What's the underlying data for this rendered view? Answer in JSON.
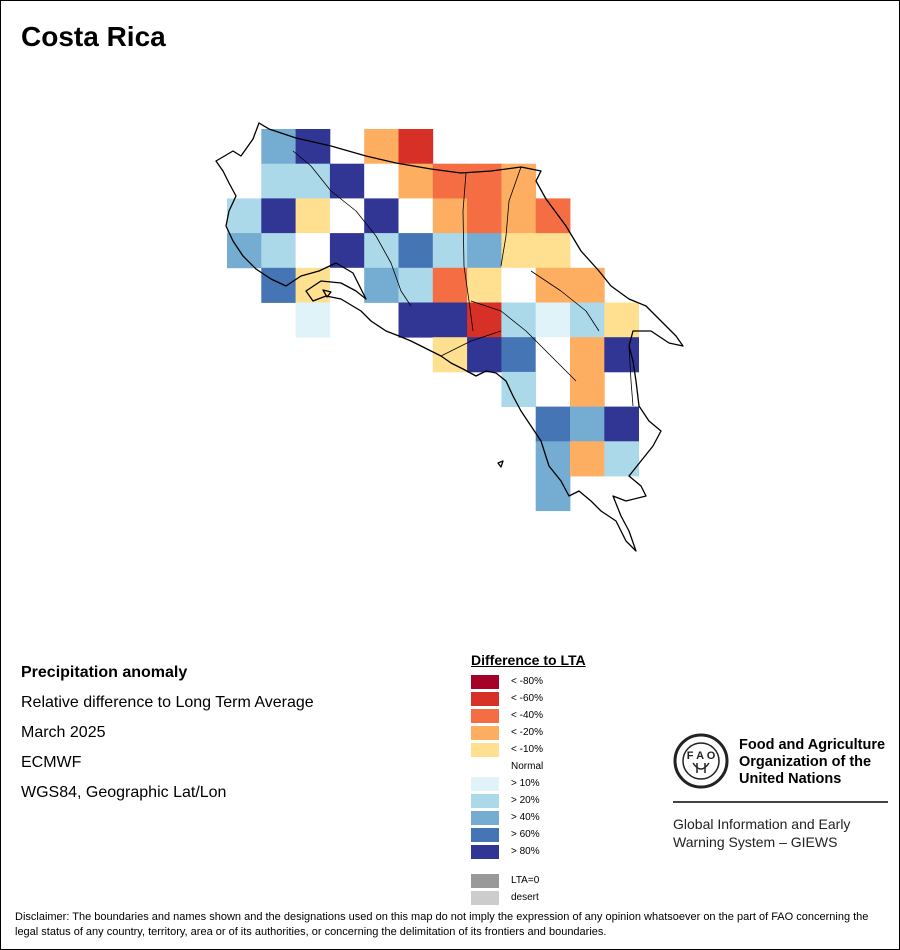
{
  "map": {
    "title": "Costa Rica",
    "info": {
      "variable": "Precipitation anomaly",
      "description": "Relative difference to Long Term Average",
      "period": "March 2025",
      "source": "ECMWF",
      "projection": "WGS84, Geographic Lat/Lon"
    },
    "legend": {
      "title": "Difference to LTA",
      "classes": [
        {
          "label": "< -80%",
          "color": "#a50026"
        },
        {
          "label": "< -60%",
          "color": "#d73027"
        },
        {
          "label": "< -40%",
          "color": "#f46d43"
        },
        {
          "label": "< -20%",
          "color": "#fdae61"
        },
        {
          "label": "< -10%",
          "color": "#fee090"
        },
        {
          "label": "Normal",
          "color": "#ffffff"
        },
        {
          "label": "> 10%",
          "color": "#e0f3f8"
        },
        {
          "label": "> 20%",
          "color": "#abd9e9"
        },
        {
          "label": "> 40%",
          "color": "#74add1"
        },
        {
          "label": "> 60%",
          "color": "#4575b4"
        },
        {
          "label": "> 80%",
          "color": "#313695"
        }
      ],
      "extra": [
        {
          "label": "LTA=0",
          "color": "#999999"
        },
        {
          "label": "desert",
          "color": "#cccccc"
        }
      ]
    },
    "grid_cells": [
      {
        "row": 0,
        "col": 1,
        "cls": "> 40%"
      },
      {
        "row": 0,
        "col": 2,
        "cls": "> 80%"
      },
      {
        "row": 0,
        "col": 4,
        "cls": "< -20%"
      },
      {
        "row": 0,
        "col": 5,
        "cls": "< -60%"
      },
      {
        "row": 1,
        "col": 1,
        "cls": "> 20%"
      },
      {
        "row": 1,
        "col": 2,
        "cls": "> 20%"
      },
      {
        "row": 1,
        "col": 3,
        "cls": "> 80%"
      },
      {
        "row": 1,
        "col": 4,
        "cls": "Normal"
      },
      {
        "row": 1,
        "col": 5,
        "cls": "< -20%"
      },
      {
        "row": 1,
        "col": 6,
        "cls": "< -40%"
      },
      {
        "row": 1,
        "col": 7,
        "cls": "< -40%"
      },
      {
        "row": 1,
        "col": 8,
        "cls": "< -20%"
      },
      {
        "row": 2,
        "col": 0,
        "cls": "> 20%"
      },
      {
        "row": 2,
        "col": 1,
        "cls": "> 80%"
      },
      {
        "row": 2,
        "col": 2,
        "cls": "< -10%"
      },
      {
        "row": 2,
        "col": 3,
        "cls": "Normal"
      },
      {
        "row": 2,
        "col": 4,
        "cls": "> 80%"
      },
      {
        "row": 2,
        "col": 5,
        "cls": "Normal"
      },
      {
        "row": 2,
        "col": 6,
        "cls": "< -20%"
      },
      {
        "row": 2,
        "col": 7,
        "cls": "< -40%"
      },
      {
        "row": 2,
        "col": 8,
        "cls": "< -20%"
      },
      {
        "row": 2,
        "col": 9,
        "cls": "< -40%"
      },
      {
        "row": 3,
        "col": 0,
        "cls": "> 40%"
      },
      {
        "row": 3,
        "col": 1,
        "cls": "> 20%"
      },
      {
        "row": 3,
        "col": 2,
        "cls": "Normal"
      },
      {
        "row": 3,
        "col": 3,
        "cls": "> 80%"
      },
      {
        "row": 3,
        "col": 4,
        "cls": "> 20%"
      },
      {
        "row": 3,
        "col": 5,
        "cls": "> 60%"
      },
      {
        "row": 3,
        "col": 6,
        "cls": "> 20%"
      },
      {
        "row": 3,
        "col": 7,
        "cls": "> 40%"
      },
      {
        "row": 3,
        "col": 8,
        "cls": "< -10%"
      },
      {
        "row": 3,
        "col": 9,
        "cls": "< -10%"
      },
      {
        "row": 4,
        "col": 1,
        "cls": "> 60%"
      },
      {
        "row": 4,
        "col": 2,
        "cls": "< -10%"
      },
      {
        "row": 4,
        "col": 3,
        "cls": "Normal"
      },
      {
        "row": 4,
        "col": 4,
        "cls": "> 40%"
      },
      {
        "row": 4,
        "col": 5,
        "cls": "> 20%"
      },
      {
        "row": 4,
        "col": 6,
        "cls": "< -40%"
      },
      {
        "row": 4,
        "col": 7,
        "cls": "< -10%"
      },
      {
        "row": 4,
        "col": 8,
        "cls": "Normal"
      },
      {
        "row": 4,
        "col": 9,
        "cls": "< -20%"
      },
      {
        "row": 4,
        "col": 10,
        "cls": "< -20%"
      },
      {
        "row": 5,
        "col": 2,
        "cls": "> 10%"
      },
      {
        "row": 5,
        "col": 5,
        "cls": "> 80%"
      },
      {
        "row": 5,
        "col": 6,
        "cls": "> 80%"
      },
      {
        "row": 5,
        "col": 7,
        "cls": "< -60%"
      },
      {
        "row": 5,
        "col": 8,
        "cls": "> 20%"
      },
      {
        "row": 5,
        "col": 9,
        "cls": "> 10%"
      },
      {
        "row": 5,
        "col": 10,
        "cls": "> 20%"
      },
      {
        "row": 5,
        "col": 11,
        "cls": "< -10%"
      },
      {
        "row": 6,
        "col": 6,
        "cls": "< -10%"
      },
      {
        "row": 6,
        "col": 7,
        "cls": "> 80%"
      },
      {
        "row": 6,
        "col": 8,
        "cls": "> 60%"
      },
      {
        "row": 6,
        "col": 9,
        "cls": "Normal"
      },
      {
        "row": 6,
        "col": 10,
        "cls": "< -20%"
      },
      {
        "row": 6,
        "col": 11,
        "cls": "> 80%"
      },
      {
        "row": 7,
        "col": 8,
        "cls": "> 20%"
      },
      {
        "row": 7,
        "col": 10,
        "cls": "< -20%"
      },
      {
        "row": 8,
        "col": 9,
        "cls": "> 60%"
      },
      {
        "row": 8,
        "col": 10,
        "cls": "> 40%"
      },
      {
        "row": 8,
        "col": 11,
        "cls": "> 80%"
      },
      {
        "row": 9,
        "col": 9,
        "cls": "> 40%"
      },
      {
        "row": 9,
        "col": 10,
        "cls": "< -20%"
      },
      {
        "row": 9,
        "col": 11,
        "cls": "> 20%"
      },
      {
        "row": 10,
        "col": 9,
        "cls": "> 40%"
      }
    ],
    "org": {
      "name": "Food and Agriculture Organization of the United Nations",
      "system": "Global Information and Early Warning System – GIEWS",
      "logo_text": "FAO",
      "logo_motto": "FIAT PANIS"
    },
    "disclaimer": "Disclaimer: The boundaries and names shown and the designations used on this map do not imply the expression of any opinion whatsoever on the part of FAO concerning the legal status of any country, territory, area or of its authorities, or concerning the delimitation of its frontiers and boundaries."
  }
}
